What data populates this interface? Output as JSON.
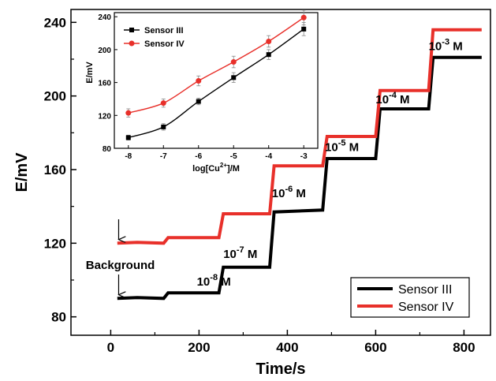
{
  "chart_data": [
    {
      "type": "line",
      "xlabel": "Time/s",
      "ylabel": "E/mV",
      "xlim": [
        -90,
        860
      ],
      "ylim": [
        70,
        247
      ],
      "x_ticks": [
        "0",
        "200",
        "400",
        "600",
        "800"
      ],
      "y_ticks": [
        "80",
        "120",
        "160",
        "200",
        "240"
      ],
      "series": [
        {
          "name": "Sensor III",
          "color": "#000000",
          "points": [
            [
              15,
              90
            ],
            [
              60,
              90.5
            ],
            [
              120,
              90
            ],
            [
              130,
              93
            ],
            [
              245,
              93
            ],
            [
              255,
              107
            ],
            [
              360,
              107
            ],
            [
              370,
              137
            ],
            [
              480,
              138
            ],
            [
              490,
              166
            ],
            [
              600,
              166
            ],
            [
              610,
              193
            ],
            [
              720,
              193
            ],
            [
              730,
              221
            ],
            [
              840,
              221
            ]
          ]
        },
        {
          "name": "Sensor IV",
          "color": "#e8302a",
          "points": [
            [
              15,
              120
            ],
            [
              60,
              120.5
            ],
            [
              120,
              120
            ],
            [
              130,
              123
            ],
            [
              245,
              123
            ],
            [
              255,
              136
            ],
            [
              360,
              136
            ],
            [
              370,
              162
            ],
            [
              480,
              162
            ],
            [
              490,
              178
            ],
            [
              600,
              178
            ],
            [
              610,
              203
            ],
            [
              720,
              203
            ],
            [
              730,
              236
            ],
            [
              840,
              236
            ]
          ]
        }
      ],
      "annotations": [
        {
          "text": "Background",
          "x": 15,
          "y": 106
        },
        {
          "base": "10",
          "exp": "-8",
          "unit": " M",
          "x": 195,
          "y": 97
        },
        {
          "base": "10",
          "exp": "-7",
          "unit": " M",
          "x": 255,
          "y": 112
        },
        {
          "base": "10",
          "exp": "-6",
          "unit": " M",
          "x": 365,
          "y": 145
        },
        {
          "base": "10",
          "exp": "-5",
          "unit": " M",
          "x": 485,
          "y": 170
        },
        {
          "base": "10",
          "exp": "-4",
          "unit": " M",
          "x": 600,
          "y": 196
        },
        {
          "base": "10",
          "exp": "-3",
          "unit": " M",
          "x": 720,
          "y": 225
        }
      ],
      "arrows": [
        {
          "x": 18,
          "y_from": 133,
          "y_to": 122
        },
        {
          "x": 18,
          "y_from": 103,
          "y_to": 92
        }
      ],
      "legend": {
        "position": "bottom-right",
        "entries": [
          "Sensor III",
          "Sensor IV"
        ]
      }
    },
    {
      "type": "line",
      "inset": true,
      "xlabel": "log[Cu2+]/M",
      "xlabel_parts": {
        "pre": "log[Cu",
        "sup": "2+",
        "post": "]/M"
      },
      "ylabel": "E/mV",
      "xlim": [
        -8.4,
        -2.6
      ],
      "ylim": [
        80,
        245
      ],
      "x_ticks": [
        "-8",
        "-7",
        "-6",
        "-5",
        "-4",
        "-3"
      ],
      "y_ticks": [
        "80",
        "120",
        "160",
        "200",
        "240"
      ],
      "series": [
        {
          "name": "Sensor III",
          "color": "#000000",
          "marker": "square",
          "x": [
            -8,
            -7,
            -6,
            -5,
            -4,
            -3
          ],
          "y": [
            93,
            106,
            137,
            166,
            194,
            225
          ],
          "err": [
            3,
            4,
            4,
            6,
            6,
            8
          ]
        },
        {
          "name": "Sensor IV",
          "color": "#e8302a",
          "marker": "circle",
          "x": [
            -8,
            -7,
            -6,
            -5,
            -4,
            -3
          ],
          "y": [
            123,
            135,
            162,
            185,
            210,
            239
          ],
          "err": [
            5,
            5,
            6,
            7,
            7,
            9
          ]
        }
      ],
      "legend": {
        "position": "top-left",
        "entries": [
          "Sensor III",
          "Sensor IV"
        ]
      }
    }
  ]
}
